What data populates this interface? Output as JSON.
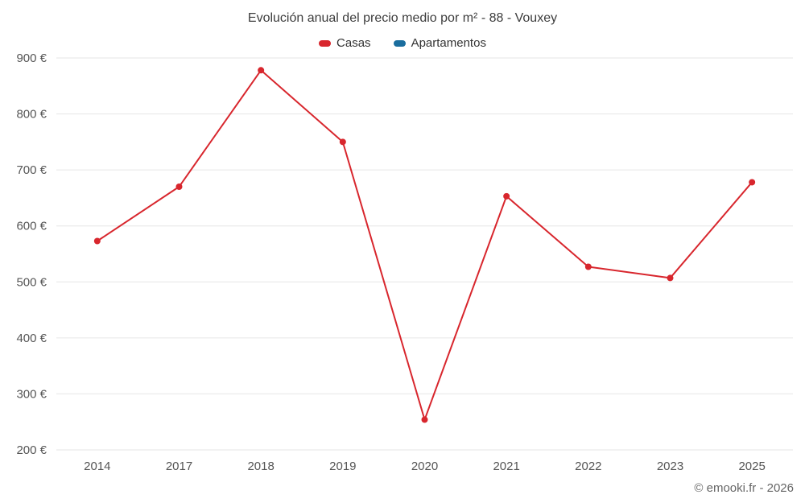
{
  "page": {
    "footer": "© emooki.fr - 2026"
  },
  "chart_data": {
    "type": "line",
    "title": "Evolución anual del precio medio por m² - 88 - Vouxey",
    "categories": [
      "2014",
      "2017",
      "2018",
      "2019",
      "2020",
      "2021",
      "2022",
      "2023",
      "2025"
    ],
    "series": [
      {
        "name": "Casas",
        "color": "#d8262d",
        "values": [
          573,
          670,
          878,
          750,
          254,
          653,
          527,
          507,
          678
        ]
      },
      {
        "name": "Apartamentos",
        "color": "#1a6d9e",
        "values": []
      }
    ],
    "ylim": [
      200,
      900
    ],
    "yticks": [
      200,
      300,
      400,
      500,
      600,
      700,
      800,
      900
    ],
    "ytick_labels": [
      "200 €",
      "300 €",
      "400 €",
      "500 €",
      "600 €",
      "700 €",
      "800 €",
      "900 €"
    ],
    "grid": true,
    "legend_position": "top",
    "background": "#ffffff",
    "grid_color": "#e6e6e6",
    "axis_label_color": "#555555",
    "marker_radius": 4,
    "line_width": 2
  }
}
